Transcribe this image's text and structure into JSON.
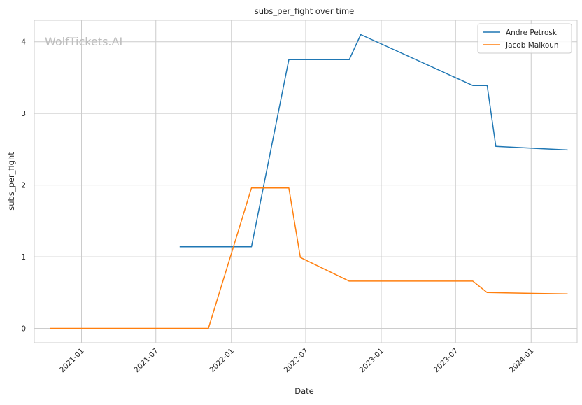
{
  "chart_data": {
    "type": "line",
    "title": "subs_per_fight over time",
    "xlabel": "Date",
    "ylabel": "subs_per_fight",
    "watermark": "WolfTickets.AI",
    "x_axis": {
      "type": "date",
      "range": [
        "2020-09-08",
        "2024-04-22"
      ],
      "ticks": [
        "2021-01-01",
        "2021-07-01",
        "2022-01-01",
        "2022-07-01",
        "2023-01-01",
        "2023-07-01",
        "2024-01-01"
      ],
      "tick_labels": [
        "2021-01",
        "2021-07",
        "2022-01",
        "2022-07",
        "2023-01",
        "2023-07",
        "2024-01"
      ]
    },
    "y_axis": {
      "range": [
        -0.2,
        4.3
      ],
      "ticks": [
        0,
        1,
        2,
        3,
        4
      ],
      "tick_labels": [
        "0",
        "1",
        "2",
        "3",
        "4"
      ]
    },
    "grid": true,
    "legend_position": "top-right",
    "series": [
      {
        "name": "Andre Petroski",
        "color": "#1f77b4",
        "points": [
          {
            "x": "2021-08-28",
            "y": 1.14
          },
          {
            "x": "2022-02-19",
            "y": 1.14
          },
          {
            "x": "2022-05-21",
            "y": 3.75
          },
          {
            "x": "2022-10-15",
            "y": 3.75
          },
          {
            "x": "2022-11-12",
            "y": 4.1
          },
          {
            "x": "2023-08-12",
            "y": 3.39
          },
          {
            "x": "2023-09-16",
            "y": 3.39
          },
          {
            "x": "2023-10-07",
            "y": 2.54
          },
          {
            "x": "2024-03-30",
            "y": 2.49
          }
        ]
      },
      {
        "name": "Jacob Malkoun",
        "color": "#ff7f0e",
        "points": [
          {
            "x": "2020-10-17",
            "y": 0.0
          },
          {
            "x": "2021-11-06",
            "y": 0.0
          },
          {
            "x": "2022-02-19",
            "y": 1.96
          },
          {
            "x": "2022-05-21",
            "y": 1.96
          },
          {
            "x": "2022-06-18",
            "y": 0.99
          },
          {
            "x": "2022-10-15",
            "y": 0.66
          },
          {
            "x": "2023-08-12",
            "y": 0.66
          },
          {
            "x": "2023-09-16",
            "y": 0.5
          },
          {
            "x": "2024-03-30",
            "y": 0.48
          }
        ]
      }
    ]
  }
}
